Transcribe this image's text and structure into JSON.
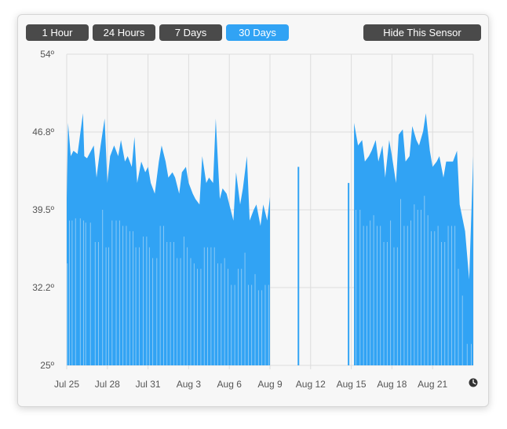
{
  "toolbar": {
    "range_buttons": [
      {
        "label": "1 Hour",
        "active": false
      },
      {
        "label": "24 Hours",
        "active": false
      },
      {
        "label": "7 Days",
        "active": false
      },
      {
        "label": "30 Days",
        "active": true
      }
    ],
    "hide_label": "Hide This Sensor"
  },
  "icons": {
    "clock": "clock-icon"
  },
  "colors": {
    "series": "#31a3f4",
    "active_button": "#31a3f4",
    "button": "#4a4a4a",
    "grid": "#dcdcdc"
  },
  "chart_data": {
    "type": "area",
    "title": "",
    "xlabel": "",
    "ylabel": "",
    "y_ticks": [
      "54º",
      "46.8º",
      "39.5º",
      "32.2º",
      "25º"
    ],
    "x_ticks": [
      "Jul 25",
      "Jul 28",
      "Jul 31",
      "Aug 3",
      "Aug 6",
      "Aug 9",
      "Aug 12",
      "Aug 15",
      "Aug 18",
      "Aug 21"
    ],
    "ylim": [
      25,
      54
    ],
    "xlim_days": [
      0,
      30
    ],
    "grid": true,
    "series": [
      {
        "x": [
          0.0,
          0.1,
          0.3,
          0.5,
          0.8,
          1.2,
          1.3,
          1.5,
          2.0,
          2.2,
          2.5,
          2.8,
          3.0,
          3.2,
          3.5,
          3.8,
          4.0,
          4.3,
          4.5,
          4.8,
          5.0,
          5.2,
          5.5,
          5.8,
          6.0,
          6.2,
          6.5,
          6.8,
          7.0,
          7.3,
          7.5,
          7.8,
          8.0,
          8.3,
          8.5,
          8.8,
          9.0,
          9.3,
          9.5,
          9.8,
          10.0,
          10.3,
          10.5,
          10.8,
          11.0,
          11.3,
          11.5,
          11.8,
          12.0,
          12.3,
          12.5,
          12.8,
          13.0,
          13.3,
          13.5,
          13.8,
          14.0,
          14.3,
          14.5,
          14.8,
          15.0,
          17.1,
          20.8,
          21.2,
          21.5,
          21.8,
          22.0,
          22.3,
          22.5,
          22.8,
          23.0,
          23.3,
          23.5,
          23.8,
          24.0,
          24.3,
          24.5,
          24.8,
          25.0,
          25.3,
          25.5,
          25.8,
          26.0,
          26.3,
          26.5,
          26.8,
          27.0,
          27.3,
          27.5,
          27.8,
          28.0,
          28.3,
          28.5,
          28.8,
          29.0,
          29.4,
          29.7,
          30.0
        ],
        "values": [
          40.5,
          47.6,
          44.5,
          45.0,
          44.7,
          48.5,
          44.5,
          44.3,
          45.5,
          42.5,
          45.5,
          48.0,
          42.0,
          44.5,
          45.5,
          44.5,
          46.0,
          44.0,
          44.5,
          43.5,
          46.3,
          42.0,
          44.0,
          43.0,
          43.5,
          42.0,
          41.0,
          44.0,
          45.5,
          44.0,
          42.5,
          43.0,
          42.5,
          41.0,
          43.0,
          43.5,
          42.0,
          41.0,
          40.5,
          40.0,
          44.5,
          42.0,
          42.5,
          42.0,
          48.0,
          40.5,
          41.5,
          41.0,
          40.0,
          38.5,
          43.0,
          40.0,
          41.5,
          44.5,
          38.5,
          39.5,
          40.0,
          38.0,
          40.0,
          38.5,
          40.7,
          43.5,
          42.0,
          47.6,
          45.5,
          46.0,
          44.0,
          44.5,
          45.0,
          46.0,
          44.0,
          45.5,
          42.5,
          46.0,
          44.5,
          42.0,
          46.5,
          47.0,
          44.0,
          44.5,
          47.3,
          46.0,
          45.5,
          46.8,
          48.5,
          45.0,
          43.5,
          44.0,
          44.5,
          42.5,
          44.0,
          44.0,
          44.0,
          45.0,
          40.0,
          37.5,
          33.0,
          44.5
        ],
        "gaps_after_x": [
          15.0,
          17.1,
          20.8
        ],
        "isolated_spikes": [
          {
            "x": 17.1,
            "value": 43.5
          },
          {
            "x": 20.8,
            "value": 42.0
          }
        ]
      }
    ]
  }
}
